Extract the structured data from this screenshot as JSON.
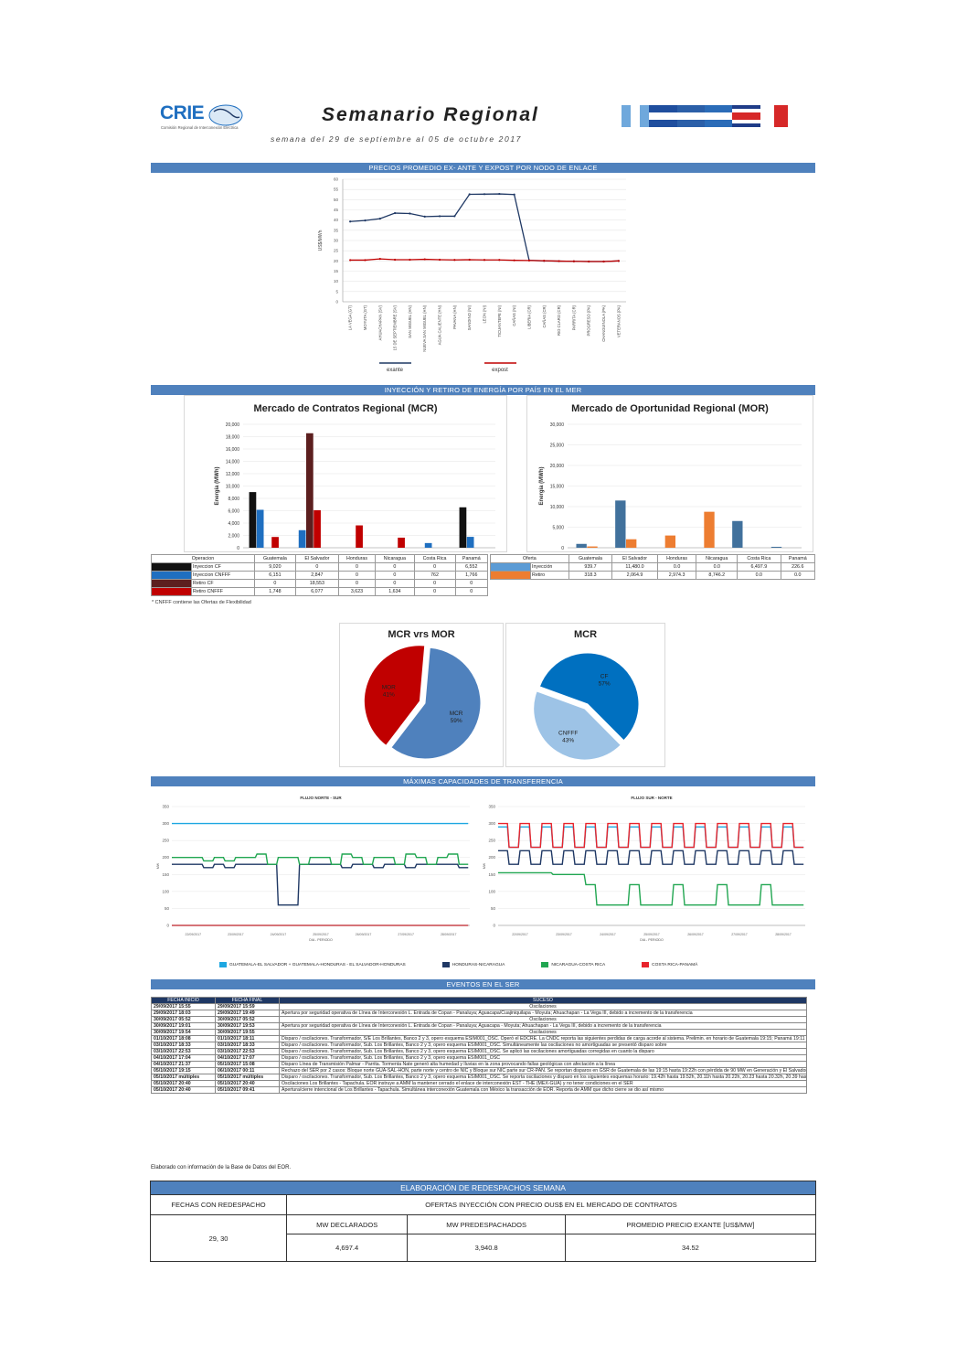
{
  "header": {
    "logo_text": "CRIE",
    "logo_sub": "Comisión Regional de Interconexión Eléctrica",
    "title": "Semanario Regional",
    "subtitle": "semana del 29 de septiembre al 05 de octubre 2017",
    "flags": [
      "#6fa8dc",
      "#1f4e9e",
      "#1f4e9e",
      "#2b5fa8",
      "#d62828",
      "#d62828"
    ]
  },
  "sections": {
    "precios": "PRECIOS PROMEDIO EX- ANTE Y EXPOST POR NODO DE ENLACE",
    "inyeccion": "INYECCIÓN Y RETIRO DE ENERGÍA POR PAÍS EN EL MER",
    "capacidades": "MÁXIMAS CAPACIDADES DE TRANSFERENCIA",
    "eventos": "EVENTOS EN EL SER"
  },
  "price_chart": {
    "ylabel": "US$/MWh",
    "ylim": [
      0,
      60
    ],
    "yticks": [
      "0",
      "5",
      "10",
      "15",
      "20",
      "25",
      "30",
      "35",
      "40",
      "45",
      "50",
      "55",
      "60"
    ],
    "categories": [
      "LA VEGA (GT)",
      "MOYUTA (GT)",
      "AHUACHAPAN (SV)",
      "15 DE SEPTIEMBRE (SV)",
      "SAN MIGUEL (HN)",
      "NUEVA SAN MIGUEL (HN)",
      "AGUA CALIENTE (HN)",
      "PAVANA (HN)",
      "SANDINO (NI)",
      "LEON (NI)",
      "TICUANTEPE (NI)",
      "CAÑAS (NI)",
      "LIBERIA (CR)",
      "CAÑAS (CR)",
      "RIO CLARO (CR)",
      "PARRITA (CR)",
      "PROGRESO (PA)",
      "CHANGUINOLA (PA)",
      "VETERANOS (PA)"
    ],
    "series": [
      {
        "name": "exante",
        "color": "#1f3864",
        "values": [
          39.3,
          39.8,
          40.7,
          43.4,
          43.2,
          41.7,
          41.9,
          41.9,
          52.6,
          52.7,
          52.8,
          52.5,
          20.3,
          20.0,
          19.9,
          19.8,
          19.7,
          19.7,
          20.0
        ]
      },
      {
        "name": "expost",
        "color": "#c00000",
        "values": [
          20.4,
          20.4,
          21.0,
          20.6,
          20.6,
          20.8,
          20.6,
          20.5,
          20.6,
          20.5,
          20.5,
          20.3,
          20.2,
          20.1,
          19.9,
          19.8,
          19.7,
          19.7,
          20.0
        ]
      }
    ]
  },
  "mcr_chart": {
    "title": "Mercado de Contratos Regional (MCR)",
    "ylabel": "Energía (MWh)",
    "ylim": [
      0,
      20000
    ],
    "yticks": [
      "0",
      "2,000",
      "4,000",
      "6,000",
      "8,000",
      "10,000",
      "12,000",
      "14,000",
      "16,000",
      "18,000",
      "20,000"
    ],
    "categories": [
      "Guatemala",
      "El Salvador",
      "Honduras",
      "Nicaragua",
      "Costa Rica",
      "Panamá"
    ],
    "series": [
      {
        "name": "Inyeccion CF",
        "color": "#111111",
        "values": [
          9020,
          0,
          0,
          0,
          0,
          6552
        ]
      },
      {
        "name": "Inyeccion CNFFF",
        "color": "#1f6fc0",
        "values": [
          6151,
          2847,
          0,
          0,
          762,
          1766
        ]
      },
      {
        "name": "Retiro CF",
        "color": "#5c1f1f",
        "values": [
          0,
          18553,
          0,
          0,
          0,
          0
        ]
      },
      {
        "name": "Retiro CNFFF",
        "color": "#c00000",
        "values": [
          1748,
          6077,
          3623,
          1634,
          0,
          0
        ]
      }
    ]
  },
  "mcr_table": {
    "header": [
      "Operacion",
      "Guatemala",
      "El Salvador",
      "Honduras",
      "Nicaragua",
      "Costa Rica",
      "Panamá"
    ],
    "rows": [
      {
        "label": "Inyeccion CF",
        "color": "#111111",
        "cells": [
          "9,020",
          "0",
          "0",
          "0",
          "0",
          "6,552"
        ]
      },
      {
        "label": "Inyeccion CNFFF",
        "color": "#1f6fc0",
        "cells": [
          "6,151",
          "2,847",
          "0",
          "0",
          "762",
          "1,766"
        ]
      },
      {
        "label": "Retiro CF",
        "color": "#5c1f1f",
        "cells": [
          "0",
          "18,553",
          "0",
          "0",
          "0",
          "0"
        ]
      },
      {
        "label": "Retiro CNFFF",
        "color": "#c00000",
        "cells": [
          "1,748",
          "6,077",
          "3,623",
          "1,634",
          "0",
          "0"
        ]
      }
    ],
    "note": "* CNFFF contiene las Ofertas de Flexibilidad"
  },
  "mor_chart": {
    "title": "Mercado de Oportunidad Regional (MOR)",
    "ylabel": "Energía (MWh)",
    "ylim": [
      0,
      30000
    ],
    "yticks": [
      "0",
      "5,000",
      "10,000",
      "15,000",
      "20,000",
      "25,000",
      "30,000"
    ],
    "categories": [
      "Guatemala",
      "El Salvador",
      "Honduras",
      "Nicaragua",
      "Costa Rica",
      "Panamá"
    ],
    "series": [
      {
        "name": "Inyección",
        "color": "#41719c",
        "values": [
          939.7,
          11480.0,
          0.0,
          0.0,
          6497.9,
          226.6
        ]
      },
      {
        "name": "Retiro",
        "color": "#ed7d31",
        "values": [
          318.3,
          2064.9,
          2974.3,
          8746.2,
          0.0,
          0.0
        ]
      }
    ]
  },
  "mor_table": {
    "header": [
      "Oferta",
      "Guatemala",
      "El Salvador",
      "Honduras",
      "Nicaragua",
      "Costa Rica",
      "Panamá"
    ],
    "rows": [
      {
        "label": "Inyección",
        "color": "#5b9bd5",
        "cells": [
          "939.7",
          "11,480.0",
          "0.0",
          "0.0",
          "6,497.9",
          "226.6"
        ]
      },
      {
        "label": "Retiro",
        "color": "#ed7d31",
        "cells": [
          "318.3",
          "2,064.9",
          "2,974.3",
          "8,746.2",
          "0.0",
          "0.0"
        ]
      }
    ]
  },
  "pie_mcr_mor": {
    "title": "MCR vrs MOR",
    "slices": [
      {
        "label": "MCR",
        "pct": "59%",
        "value": 59,
        "color": "#4f81bd"
      },
      {
        "label": "MOR",
        "pct": "41%",
        "value": 41,
        "color": "#c00000"
      }
    ]
  },
  "pie_mcr": {
    "title": "MCR",
    "slices": [
      {
        "label": "CF",
        "pct": "57%",
        "value": 57,
        "color": "#0070c0"
      },
      {
        "label": "CNFFF",
        "pct": "43%",
        "value": 43,
        "color": "#9dc3e6"
      }
    ]
  },
  "flow_norte_sur": {
    "title": "FLUJO NORTE - SUR",
    "xlabel": "DIA - PERIODO",
    "ylabel": "MW",
    "ylim": [
      0,
      350
    ],
    "yticks": [
      "0",
      "50",
      "100",
      "150",
      "200",
      "250",
      "300",
      "350"
    ],
    "dates": [
      "22/09/2017",
      "23/09/2017",
      "24/09/2017",
      "25/09/2017",
      "26/09/2017",
      "27/09/2017",
      "28/09/2017"
    ],
    "series": [
      {
        "name": "GUATEMALA-EL SALVADOR + GUATEMALA-HONDURAS - EL SALVADOR-HONDURAS",
        "color": "#1ea7e1",
        "values": [
          300,
          300,
          300,
          300,
          300,
          300,
          300,
          300,
          300,
          300,
          300,
          300,
          300,
          300,
          300,
          300,
          300,
          300,
          300,
          300,
          300,
          300,
          300,
          300,
          300,
          300,
          300,
          300
        ]
      },
      {
        "name": "HONDURAS-NICARAGUA",
        "color": "#1f3864",
        "values": [
          180,
          180,
          180,
          170,
          180,
          170,
          180,
          180,
          180,
          180,
          60,
          60,
          180,
          180,
          180,
          180,
          170,
          180,
          180,
          170,
          180,
          180,
          170,
          180,
          180,
          180,
          180,
          170
        ]
      },
      {
        "name": "NICARAGUA-COSTA RICA",
        "color": "#21a651",
        "values": [
          200,
          200,
          200,
          190,
          200,
          190,
          200,
          200,
          210,
          180,
          200,
          200,
          180,
          200,
          200,
          180,
          210,
          200,
          180,
          200,
          200,
          180,
          210,
          200,
          180,
          200,
          210,
          180
        ]
      },
      {
        "name": "COSTA RICA-PANAMÁ",
        "color": "#e8242c",
        "values": [
          0,
          0,
          0,
          0,
          0,
          0,
          0,
          0,
          0,
          0,
          0,
          0,
          0,
          0,
          0,
          0,
          0,
          0,
          0,
          0,
          0,
          0,
          0,
          0,
          0,
          0,
          0,
          0
        ]
      }
    ]
  },
  "flow_sur_norte": {
    "title": "FLUJO SUR - NORTE",
    "xlabel": "DIA - PERIODO",
    "ylabel": "MW",
    "ylim": [
      0,
      350
    ],
    "yticks": [
      "0",
      "50",
      "100",
      "150",
      "200",
      "250",
      "300",
      "350"
    ],
    "dates": [
      "22/09/2017",
      "23/09/2017",
      "24/09/2017",
      "25/09/2017",
      "26/09/2017",
      "27/09/2017",
      "28/09/2017"
    ],
    "series": [
      {
        "name": "GUATEMALA-EL SALVADOR + GUATEMALA-HONDURAS - EL SALVADOR-HONDURAS",
        "color": "#1ea7e1",
        "values": [
          290,
          230,
          290,
          230,
          290,
          230,
          290,
          230,
          290,
          230,
          290,
          230,
          290,
          230,
          290,
          230,
          290,
          230,
          290,
          230,
          290,
          230,
          290,
          230,
          290,
          230,
          290,
          230
        ]
      },
      {
        "name": "HONDURAS-NICARAGUA",
        "color": "#1f3864",
        "values": [
          220,
          180,
          220,
          180,
          220,
          180,
          220,
          180,
          220,
          180,
          220,
          180,
          220,
          180,
          220,
          180,
          220,
          180,
          220,
          180,
          220,
          180,
          220,
          180,
          220,
          180,
          220,
          180
        ]
      },
      {
        "name": "NICARAGUA-COSTA RICA",
        "color": "#21a651",
        "values": [
          155,
          155,
          155,
          155,
          155,
          150,
          150,
          150,
          120,
          60,
          60,
          60,
          120,
          60,
          60,
          60,
          120,
          60,
          60,
          60,
          120,
          60,
          60,
          60,
          120,
          60,
          60,
          60
        ]
      },
      {
        "name": "COSTA RICA-PANAMÁ",
        "color": "#e8242c",
        "values": [
          300,
          230,
          300,
          230,
          300,
          230,
          300,
          230,
          300,
          230,
          300,
          230,
          300,
          230,
          300,
          230,
          300,
          230,
          300,
          230,
          300,
          230,
          300,
          230,
          300,
          230,
          300,
          230
        ]
      }
    ]
  },
  "events": {
    "header": [
      "FECHA INICIO",
      "FECHA FINAL",
      "SUCESO"
    ],
    "rows": [
      [
        "29/09/2017 15:55",
        "29/09/2017 15:59",
        "Oscilaciones"
      ],
      [
        "29/09/2017 18:03",
        "29/09/2017 19:49",
        "Apertura por seguridad operativa de Línea de Interconexión L. Entrada de Copan - Panaluya; Aguacapa/Cuajiniquilapa - Moyuta; Ahuachapan - La Vega III, debido a incremento de la transferencia"
      ],
      [
        "30/09/2017 05:52",
        "30/09/2017 05:52",
        "Oscilaciones"
      ],
      [
        "30/09/2017 19:01",
        "30/09/2017 19:53",
        "Apertura por seguridad operativa de Línea de Interconexión L. Entrada de Copan - Panaluya; Aguacapa - Moyuta; Ahuachapan - La Vega III, debido a incremento de la transferencia"
      ],
      [
        "30/09/2017 19:54",
        "30/09/2017 19:55",
        "Oscilaciones"
      ],
      [
        "01/10/2017 18:08",
        "01/10/2017 18:11",
        "Disparo / oscilaciones. Transformador, S/E Los Brillantes, Banco 2 y 3, opero esquema ESIM001_OSC. Operó el EDCRE. La CNDC reporta las siguientes perdidas de carga acorde al sistema. Prelimin. en horario de Guatemala 19:15; Panamá 19:11 hasta 19:17; El Salvador 18:11 hasta 18:12, por disparo"
      ],
      [
        "03/10/2017 18:33",
        "03/10/2017 18:33",
        "Disparo / oscilaciones. Transformador, Sub. Los Brillantes, Banco 2 y 3, opero esquema ESIM001_OSC. Simultáneamente las oscilaciones no amortiguadas se presentó disparo sobre"
      ],
      [
        "03/10/2017 22:53",
        "03/10/2017 22:53",
        "Disparo / oscilaciones. Transformador, Sub. Los Brillantes, Banco 2 y 3, opero esquema ESIM001_OSC. Se aplicó las oscilaciones amortiguadas corregidas en cuanto la disparo"
      ],
      [
        "04/10/2017 17:04",
        "04/10/2017 17:07",
        "Disparo / oscilaciones. Transformador, Sub. Los Brillantes, Banco 2 y 3, opero esquema ESIM001_OSC"
      ],
      [
        "04/10/2017 21:37",
        "05/10/2017 15:08",
        "Disparo Línea de Transmisión Palmar - Parrita. Tormenta Nate generó alta humedad y lluvias en la zona provocando fallas geológicas con afectación a la línea"
      ],
      [
        "05/10/2017 19:15",
        "06/10/2017 00:11",
        "Rechazo del SER por 2 casos: Bloque norte GUA-SAL-HON, parte norte y centro de NIC y Bloque sur NIC parte sur CR-PAN. Se reportan disparos en GSR de Guatemala de las 19:15 hasta 19:22h con pérdida de 90 MW en Generación y El Salvador de las 19:15 hasta 19:25 con pérdida de 50 MW"
      ],
      [
        "05/10/2017 múltiples",
        "05/10/2017 múltiples",
        "Disparo / oscilaciones. Transformador, Sub. Los Brillantes, Banco 2 y 3, opero esquema ESIM001_OSC. Se reporta oscilaciones y disparo en los siguientes esquemas horario: 19.42h hasta 19.52h, 20.11h hasta 20.22h, 20.23 hasta 20.32h, 20.39 hasta 20.41"
      ],
      [
        "05/10/2017 20:40",
        "05/10/2017 20:40",
        "Oscilaciones Los Brillantes - Tapachula. EOR instruye a AMM la mantener cerrado el enlace de interconexión EST - THE (MEX-GUA) y no tener condiciones en el SER"
      ],
      [
        "05/10/2017 20:40",
        "05/10/2017 09:41",
        "Apertura/cierre intencional de Los Brillantes - Tapachula. Simultánea interconexión Guatemala con México la transacción de EOR. Reporta de AMM que dicho cierre se dio así mismo"
      ]
    ],
    "source_note": "Elaborado con información de la Base de Datos del EOR."
  },
  "redespacho": {
    "title": "ELABORACIÓN DE REDESPACHOS SEMANA",
    "col_fechas": "FECHAS CON REDESPACHO",
    "col_ofertas": "OFERTAS INYECCIÓN CON PRECIO OUS$ EN EL MERCADO DE CONTRATOS",
    "sub_headers": [
      "MW DECLARADOS",
      "MW PREDESPACHADOS",
      "PROMEDIO PRECIO EXANTE [US$/MW]"
    ],
    "fechas": "29, 30",
    "values": [
      "4,697.4",
      "3,940.8",
      "34.52"
    ]
  }
}
